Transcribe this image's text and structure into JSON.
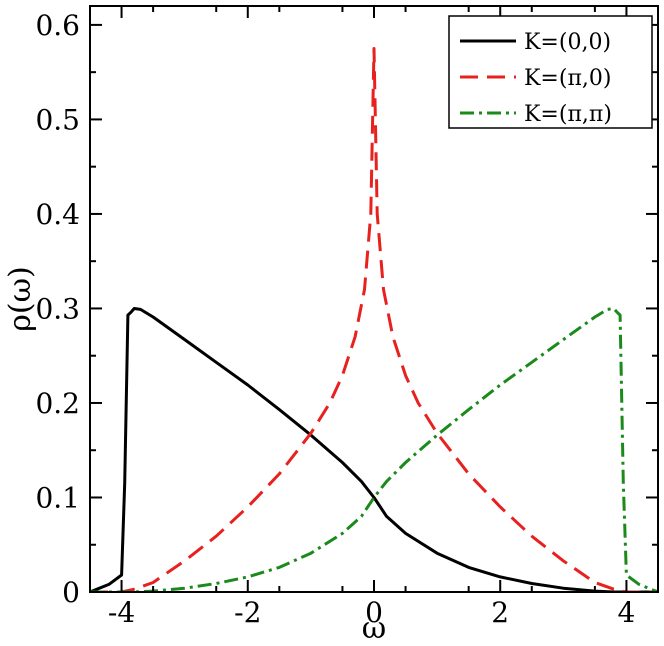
{
  "chart_data": {
    "type": "line",
    "title": "",
    "xlabel": "ω",
    "ylabel": "ρ(ω)",
    "xlim": [
      -4.5,
      4.5
    ],
    "ylim": [
      0,
      0.62
    ],
    "grid": false,
    "legend_position": "top-right",
    "x_ticks": [
      -4,
      -2,
      0,
      2,
      4
    ],
    "x_tick_labels": [
      "-4",
      "-2",
      "0",
      "2",
      "4"
    ],
    "y_ticks": [
      0,
      0.1,
      0.2,
      0.3,
      0.4,
      0.5,
      0.6
    ],
    "y_tick_labels": [
      "0",
      "0.1",
      "0.2",
      "0.3",
      "0.4",
      "0.5",
      "0.6"
    ],
    "series": [
      {
        "name": "K=(0,0)",
        "color": "#000000",
        "dash": "solid",
        "x": [
          -4.5,
          -4.2,
          -4.0,
          -3.95,
          -3.9,
          -3.85,
          -3.8,
          -3.7,
          -3.5,
          -3.0,
          -2.5,
          -2.0,
          -1.5,
          -1.0,
          -0.5,
          -0.2,
          0.0,
          0.2,
          0.5,
          1.0,
          1.5,
          2.0,
          2.5,
          3.0,
          3.5,
          3.8,
          4.0,
          4.5
        ],
        "y": [
          0.0,
          0.008,
          0.018,
          0.115,
          0.293,
          0.296,
          0.3,
          0.299,
          0.291,
          0.267,
          0.243,
          0.219,
          0.193,
          0.166,
          0.137,
          0.117,
          0.1,
          0.08,
          0.062,
          0.041,
          0.026,
          0.016,
          0.009,
          0.004,
          0.001,
          0.0,
          0.0,
          0.0
        ]
      },
      {
        "name": "K=(π,0)",
        "color": "#e8201e",
        "dash": "dashed",
        "x": [
          -4.5,
          -4.0,
          -3.8,
          -3.5,
          -3.0,
          -2.5,
          -2.0,
          -1.5,
          -1.0,
          -0.7,
          -0.5,
          -0.3,
          -0.15,
          -0.05,
          0.0,
          0.05,
          0.15,
          0.3,
          0.5,
          0.7,
          1.0,
          1.5,
          2.0,
          2.5,
          3.0,
          3.5,
          3.8,
          4.0,
          4.5
        ],
        "y": [
          0.0,
          0.0,
          0.003,
          0.01,
          0.033,
          0.059,
          0.09,
          0.125,
          0.168,
          0.2,
          0.229,
          0.27,
          0.32,
          0.4,
          0.575,
          0.4,
          0.32,
          0.27,
          0.229,
          0.2,
          0.168,
          0.125,
          0.09,
          0.059,
          0.033,
          0.01,
          0.003,
          0.0,
          0.0
        ]
      },
      {
        "name": "K=(π,π)",
        "color": "#1a8a1a",
        "dash": "dashdot",
        "x": [
          -4.5,
          -4.0,
          -3.8,
          -3.5,
          -3.0,
          -2.5,
          -2.0,
          -1.5,
          -1.0,
          -0.5,
          -0.2,
          0.0,
          0.2,
          0.5,
          1.0,
          1.5,
          2.0,
          2.5,
          3.0,
          3.5,
          3.7,
          3.8,
          3.85,
          3.9,
          3.95,
          4.0,
          4.2,
          4.5
        ],
        "y": [
          0.0,
          0.0,
          0.0,
          0.001,
          0.004,
          0.009,
          0.016,
          0.026,
          0.041,
          0.062,
          0.08,
          0.1,
          0.117,
          0.137,
          0.166,
          0.193,
          0.219,
          0.243,
          0.267,
          0.291,
          0.299,
          0.3,
          0.296,
          0.293,
          0.115,
          0.018,
          0.008,
          0.0
        ]
      }
    ]
  }
}
